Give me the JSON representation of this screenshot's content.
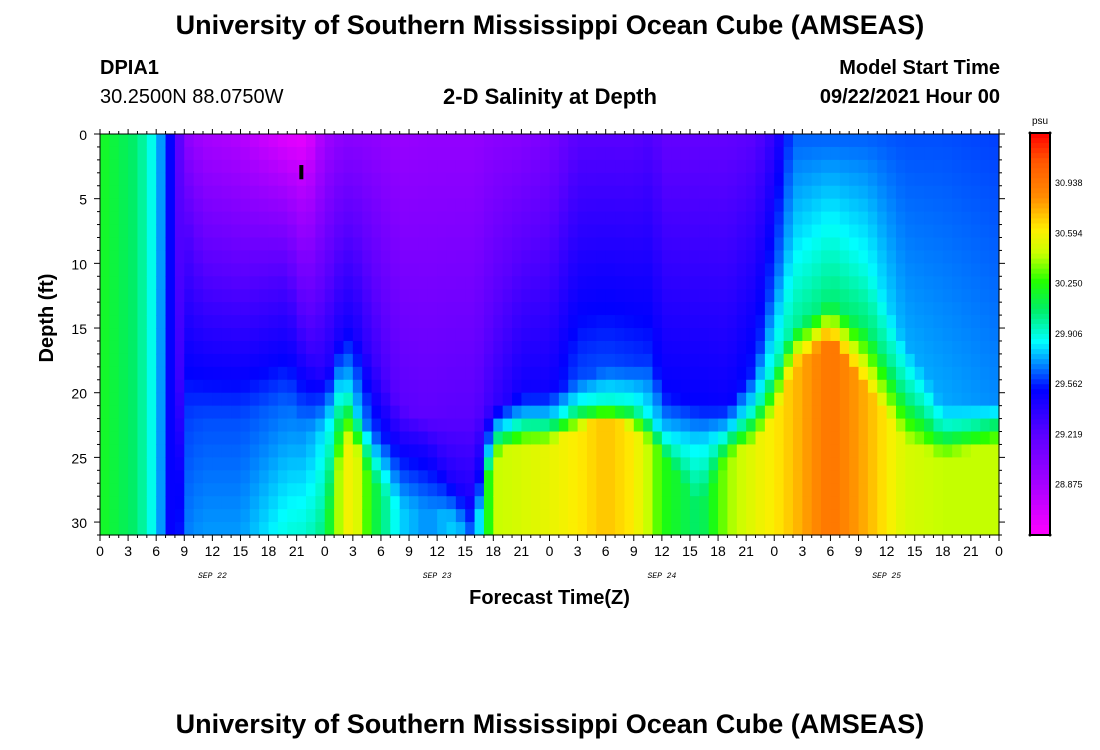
{
  "header": {
    "title": "University of Southern Mississippi Ocean Cube (AMSEAS)",
    "station_id": "DPIA1",
    "station_location": "30.2500N  88.0750W",
    "plot_title": "2-D Salinity at Depth",
    "model_start_label": "Model Start Time",
    "model_start_value": "09/22/2021 Hour 00"
  },
  "footer": {
    "title": "University of Southern Mississippi Ocean Cube (AMSEAS)"
  },
  "chart_data": {
    "type": "heatmap",
    "title": "2-D Salinity at Depth",
    "xlabel": "Forecast Time(Z)",
    "ylabel": "Depth (ft)",
    "x_range": [
      0,
      96
    ],
    "y_range": [
      0,
      31
    ],
    "x_ticks": [
      "0",
      "3",
      "6",
      "9",
      "12",
      "15",
      "18",
      "21",
      "0",
      "3",
      "6",
      "9",
      "12",
      "15",
      "18",
      "21",
      "0",
      "3",
      "6",
      "9",
      "12",
      "15",
      "18",
      "21",
      "0",
      "3",
      "6",
      "9",
      "12",
      "15",
      "18",
      "21",
      "0"
    ],
    "day_labels": [
      {
        "label": "SEP 22",
        "hour": 12
      },
      {
        "label": "SEP 23",
        "hour": 36
      },
      {
        "label": "SEP 24",
        "hour": 60
      },
      {
        "label": "SEP 25",
        "hour": 84
      }
    ],
    "y_ticks": [
      0,
      5,
      10,
      15,
      20,
      25,
      30
    ],
    "colorbar": {
      "unit": "psu",
      "min": 28.53,
      "max": 31.28,
      "labels": [
        "30.938",
        "30.594",
        "30.250",
        "29.906",
        "29.562",
        "29.219",
        "28.875"
      ]
    },
    "surface_marker_hour": 21.5,
    "columns": [
      {
        "h": 0,
        "b1": 31,
        "b2": 31,
        "b3": 31,
        "s": [
          30.2,
          30.2,
          30.2,
          30.2
        ]
      },
      {
        "h": 4,
        "b1": 31,
        "b2": 31,
        "b3": 31,
        "s": [
          30.05,
          30.05,
          30.05,
          30.05
        ]
      },
      {
        "h": 6,
        "b1": 31,
        "b2": 31,
        "b3": 31,
        "s": [
          29.82,
          29.82,
          29.82,
          29.82
        ]
      },
      {
        "h": 8,
        "b1": 31,
        "b2": 31,
        "b3": 31,
        "s": [
          29.4,
          29.4,
          29.4,
          29.4
        ]
      },
      {
        "h": 9,
        "b1": 7,
        "b2": 22,
        "b3": 31,
        "s": [
          29.0,
          29.26,
          29.6,
          29.68
        ]
      },
      {
        "h": 11,
        "b1": 10,
        "b2": 22,
        "b3": 31,
        "s": [
          28.88,
          29.22,
          29.62,
          29.72
        ]
      },
      {
        "h": 15,
        "b1": 11,
        "b2": 22,
        "b3": 31,
        "s": [
          28.82,
          29.22,
          29.62,
          29.72
        ]
      },
      {
        "h": 20,
        "b1": 11,
        "b2": 21,
        "b3": 31,
        "s": [
          28.64,
          29.26,
          29.66,
          29.9
        ]
      },
      {
        "h": 22,
        "b1": 16,
        "b2": 23,
        "b3": 31,
        "s": [
          28.62,
          29.3,
          29.7,
          29.92
        ]
      },
      {
        "h": 24,
        "b1": 19,
        "b2": 23,
        "b3": 31,
        "s": [
          28.9,
          29.42,
          29.82,
          30.05
        ]
      },
      {
        "h": 26,
        "b1": 15,
        "b2": 19,
        "b3": 24,
        "s": [
          29.0,
          29.46,
          29.84,
          30.55
        ]
      },
      {
        "h": 27,
        "b1": 15,
        "b2": 21,
        "b3": 24,
        "s": [
          29.0,
          29.46,
          29.84,
          30.62
        ]
      },
      {
        "h": 29,
        "b1": 17,
        "b2": 23,
        "b3": 27,
        "s": [
          28.98,
          29.34,
          29.62,
          30.2
        ]
      },
      {
        "h": 32,
        "b1": 21,
        "b2": 24,
        "b3": 29,
        "s": [
          28.94,
          29.22,
          29.46,
          29.8
        ]
      },
      {
        "h": 35,
        "b1": 22,
        "b2": 24,
        "b3": 29,
        "s": [
          28.96,
          29.2,
          29.42,
          29.7
        ]
      },
      {
        "h": 38,
        "b1": 22,
        "b2": 27,
        "b3": 30,
        "s": [
          28.96,
          29.22,
          29.42,
          29.8
        ]
      },
      {
        "h": 40,
        "b1": 22,
        "b2": 28,
        "b3": 31,
        "s": [
          28.96,
          29.22,
          29.42,
          29.6
        ]
      },
      {
        "h": 42,
        "b1": 21,
        "b2": 23,
        "b3": 25,
        "s": [
          29.0,
          29.34,
          29.82,
          30.45
        ]
      },
      {
        "h": 45,
        "b1": 20,
        "b2": 22,
        "b3": 24,
        "s": [
          29.02,
          29.48,
          29.82,
          30.5
        ]
      },
      {
        "h": 48,
        "b1": 20,
        "b2": 22,
        "b3": 24,
        "s": [
          29.08,
          29.48,
          29.82,
          30.55
        ]
      },
      {
        "h": 51,
        "b1": 19,
        "b2": 21,
        "b3": 23,
        "s": [
          29.22,
          29.62,
          29.9,
          30.62
        ]
      },
      {
        "h": 54,
        "b1": 18,
        "b2": 21,
        "b3": 22,
        "s": [
          29.22,
          29.62,
          29.96,
          30.72
        ]
      },
      {
        "h": 57,
        "b1": 18,
        "b2": 21,
        "b3": 23,
        "s": [
          29.22,
          29.6,
          29.92,
          30.62
        ]
      },
      {
        "h": 59,
        "b1": 17,
        "b2": 22,
        "b3": 24,
        "s": [
          29.26,
          29.56,
          29.84,
          30.4
        ]
      },
      {
        "h": 60,
        "b1": 20,
        "b2": 23,
        "b3": 25,
        "s": [
          29.18,
          29.52,
          29.8,
          30.25
        ]
      },
      {
        "h": 64,
        "b1": 21,
        "b2": 24,
        "b3": 29,
        "s": [
          29.18,
          29.52,
          29.82,
          30.05
        ]
      },
      {
        "h": 67,
        "b1": 21,
        "b2": 23,
        "b3": 25,
        "s": [
          29.18,
          29.5,
          29.82,
          30.4
        ]
      },
      {
        "h": 70,
        "b1": 18,
        "b2": 21,
        "b3": 24,
        "s": [
          29.22,
          29.56,
          29.88,
          30.55
        ]
      },
      {
        "h": 72,
        "b1": 11,
        "b2": 18,
        "b3": 22,
        "s": [
          29.36,
          29.62,
          29.92,
          30.62
        ]
      },
      {
        "h": 74,
        "b1": 8,
        "b2": 15,
        "b3": 18,
        "s": [
          29.64,
          29.8,
          30.0,
          30.72
        ]
      },
      {
        "h": 78,
        "b1": 7,
        "b2": 13,
        "b3": 16,
        "s": [
          29.64,
          29.86,
          30.06,
          30.95
        ]
      },
      {
        "h": 82,
        "b1": 10,
        "b2": 15,
        "b3": 20,
        "s": [
          29.64,
          29.86,
          30.06,
          30.75
        ]
      },
      {
        "h": 86,
        "b1": 16,
        "b2": 20,
        "b3": 24,
        "s": [
          29.62,
          29.74,
          30.0,
          30.5
        ]
      },
      {
        "h": 90,
        "b1": 21,
        "b2": 23,
        "b3": 25,
        "s": [
          29.62,
          29.74,
          29.98,
          30.45
        ]
      },
      {
        "h": 96,
        "b1": 21,
        "b2": 22,
        "b3": 24,
        "s": [
          29.6,
          29.7,
          29.96,
          30.45
        ]
      }
    ]
  }
}
